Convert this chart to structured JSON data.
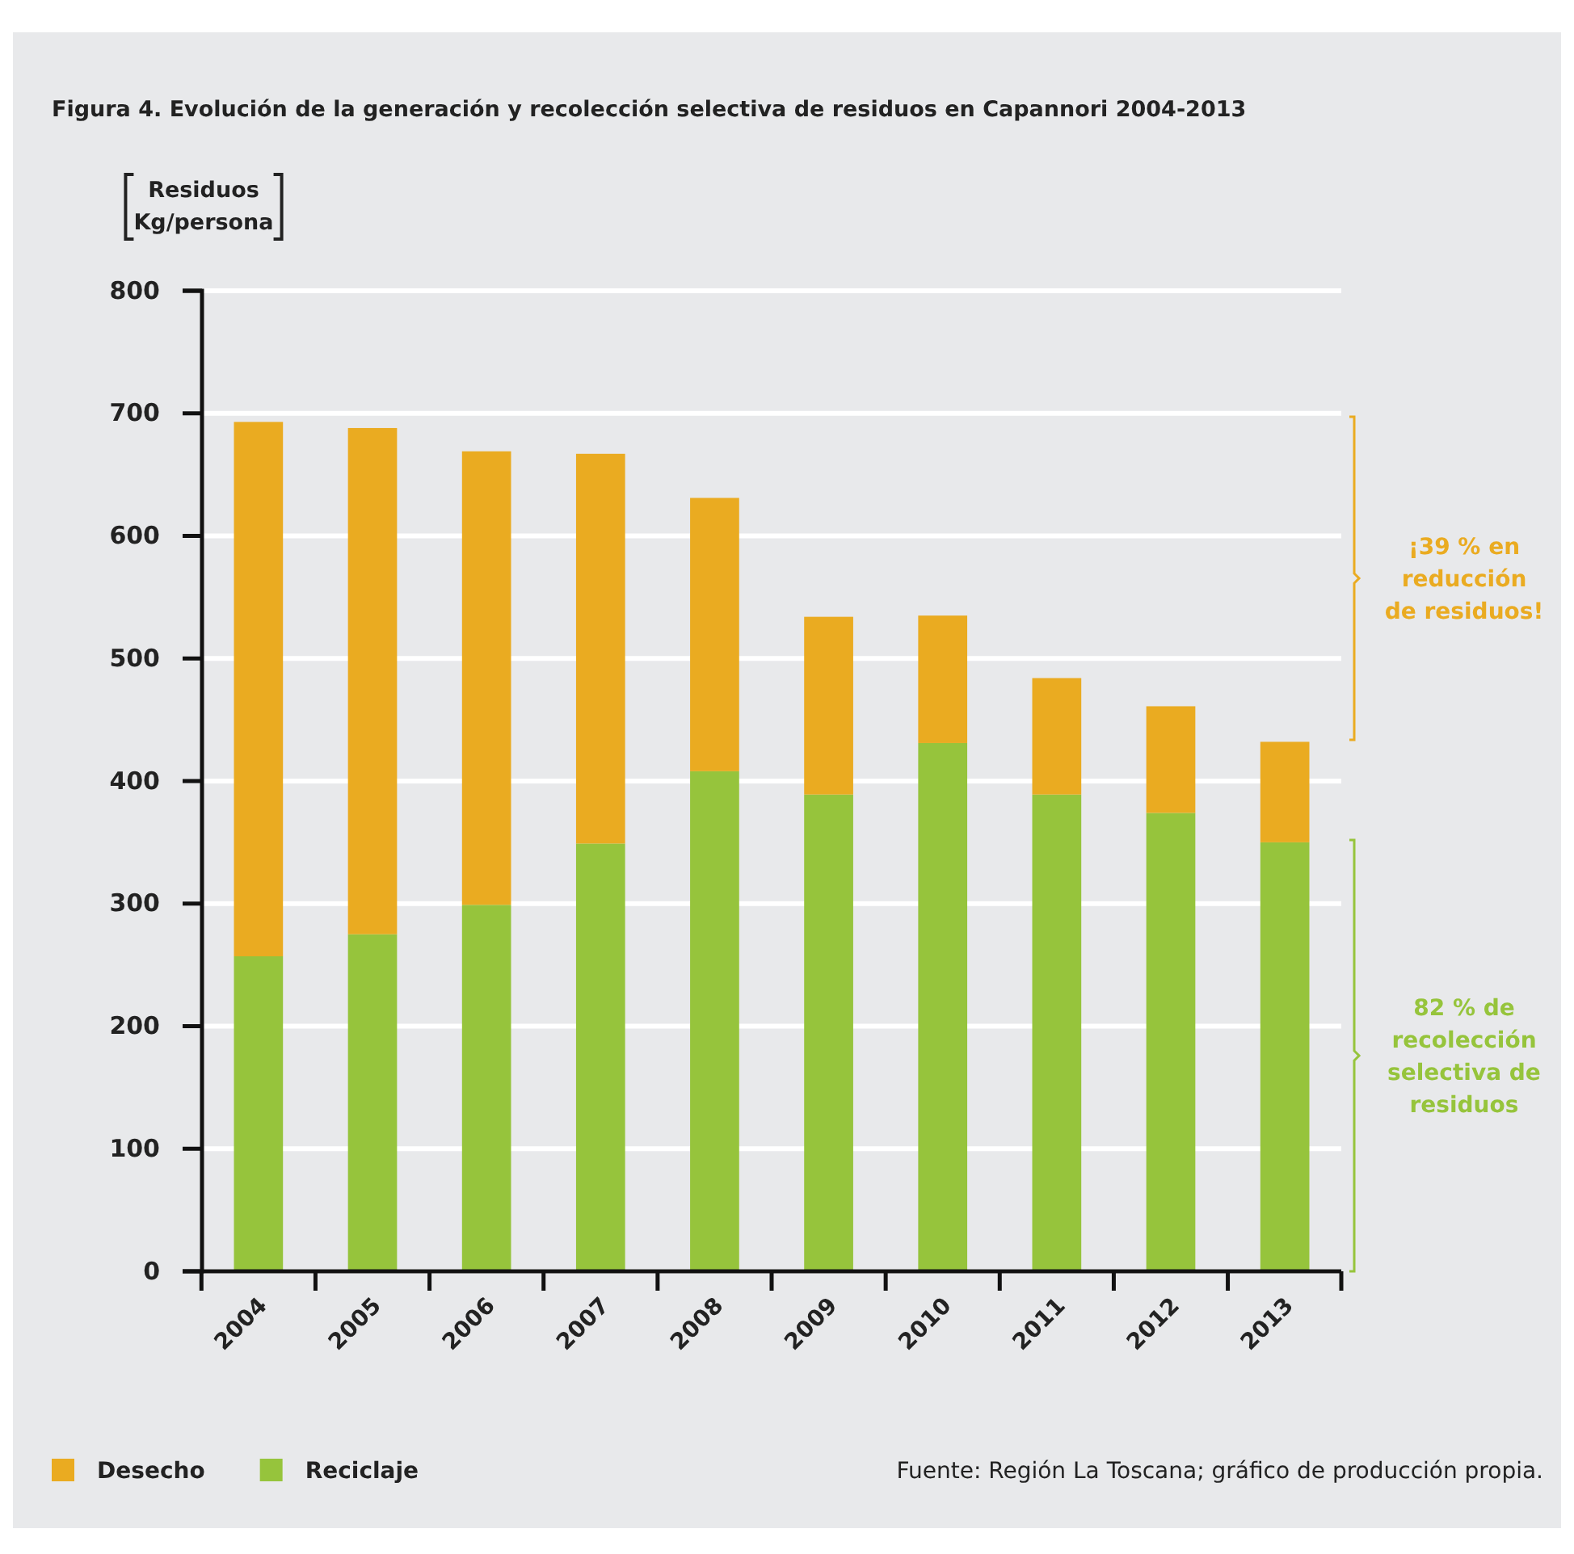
{
  "chart_data": {
    "type": "bar",
    "title": "Figura 4. Evolución de la generación y recolección selectiva de residuos en Capannori 2004-2013",
    "ylabel": "Residuos Kg/persona",
    "categories": [
      "2004",
      "2005",
      "2006",
      "2007",
      "2008",
      "2009",
      "2010",
      "2011",
      "2012",
      "2013"
    ],
    "stacked": true,
    "series": [
      {
        "name": "Reciclaje",
        "color": "#96c43c",
        "values": [
          257,
          275,
          299,
          349,
          408,
          389,
          431,
          389,
          374,
          350
        ]
      },
      {
        "name": "Desecho",
        "color": "#eaab21",
        "values": [
          436,
          413,
          370,
          318,
          223,
          145,
          104,
          95,
          87,
          82
        ]
      }
    ],
    "ylim": [
      0,
      800
    ],
    "yticks": [
      0,
      100,
      200,
      300,
      400,
      500,
      600,
      700,
      800
    ],
    "grid": "y",
    "legend": "bottom",
    "annotations": [
      "¡39 % en reducción de residuos!",
      "82 % de recolección selectiva de residuos",
      "Fuente: Región La Toscana; gráfico de producción propia."
    ]
  }
}
